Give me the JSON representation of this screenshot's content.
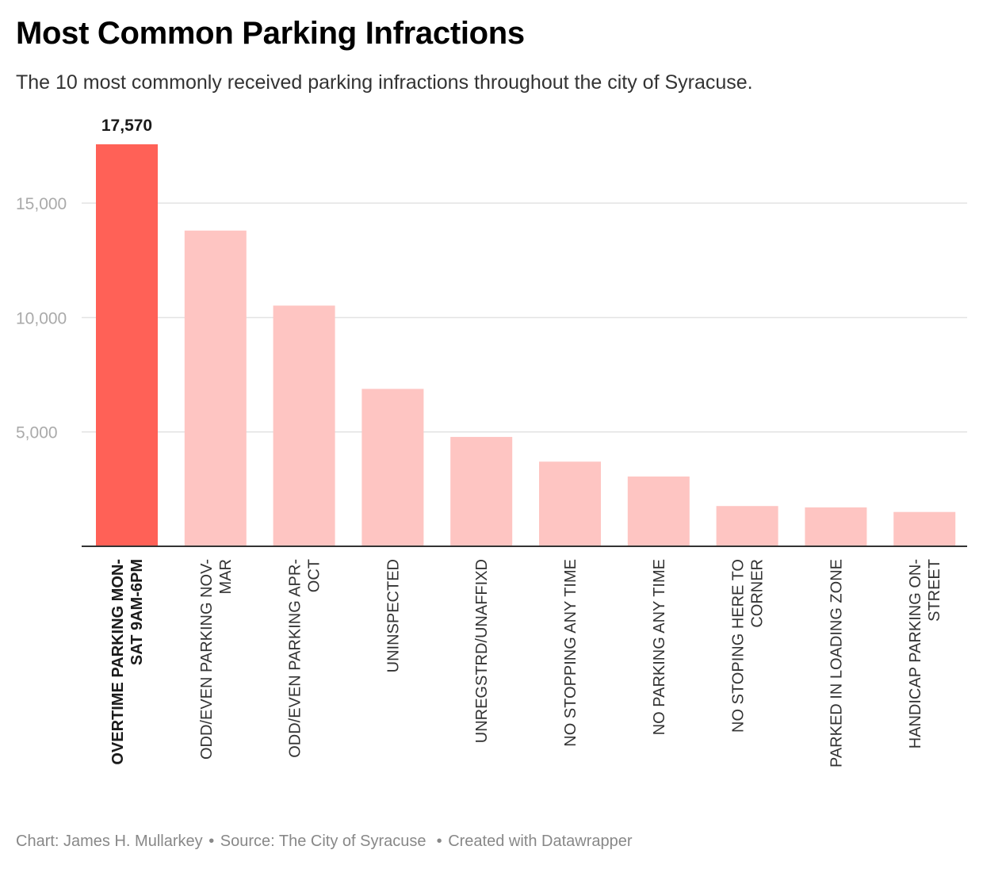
{
  "title": "Most Common Parking Infractions",
  "subtitle": "The 10 most commonly received parking infractions throughout the city of Syracuse.",
  "chart_data": {
    "type": "bar",
    "categories": [
      [
        "OVERTIME PARKING MON-",
        "SAT 9AM-6PM"
      ],
      [
        "ODD/EVEN PARKING NOV-",
        "MAR"
      ],
      [
        "ODD/EVEN PARKING APR-",
        "OCT"
      ],
      [
        "UNINSPECTED"
      ],
      [
        "UNREGSTRD/UNAFFIXD"
      ],
      [
        "NO STOPPING ANY TIME"
      ],
      [
        "NO PARKING ANY TIME"
      ],
      [
        "NO STOPING HERE TO",
        "CORNER"
      ],
      [
        "PARKED IN LOADING ZONE"
      ],
      [
        "HANDICAP PARKING ON-",
        "STREET"
      ]
    ],
    "values": [
      17570,
      13800,
      10520,
      6880,
      4780,
      3700,
      3050,
      1760,
      1700,
      1500
    ],
    "highlight_index": 0,
    "highlight_label": "17,570",
    "yticks": [
      5000,
      10000,
      15000
    ],
    "ytick_labels": [
      "5,000",
      "10,000",
      "15,000"
    ],
    "ylim": [
      0,
      17570
    ],
    "grid": true,
    "colors": {
      "highlight": "#ff6157",
      "normal": "#fec5c2",
      "grid": "#e3e3e3",
      "axis": "#333333",
      "tick_text": "#aaaaaa"
    }
  },
  "footer": {
    "chart_credit": "Chart: James H. Mullarkey",
    "source": "Source: The City of Syracuse",
    "tool": "Created with Datawrapper"
  }
}
